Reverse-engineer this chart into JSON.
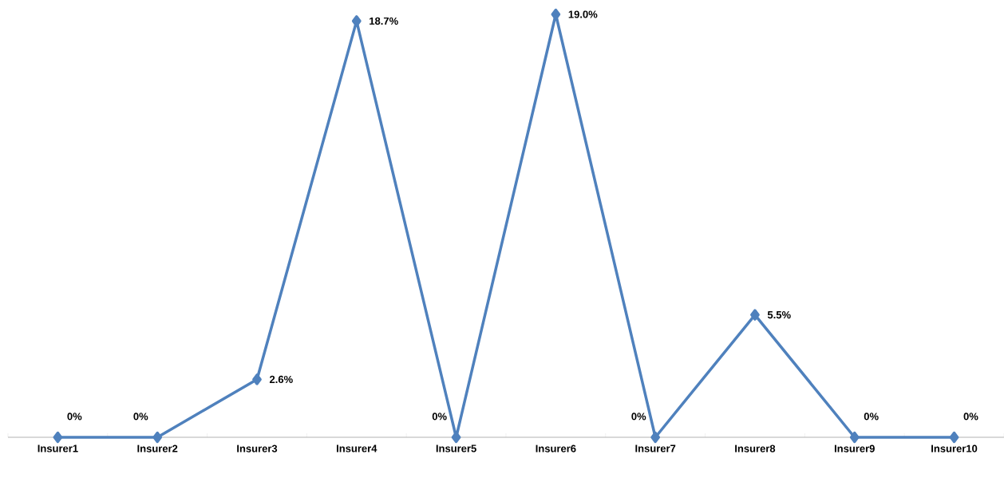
{
  "chart_data": {
    "type": "line",
    "categories": [
      "Insurer1",
      "Insurer2",
      "Insurer3",
      "Insurer4",
      "Insurer5",
      "Insurer6",
      "Insurer7",
      "Insurer8",
      "Insurer9",
      "Insurer10"
    ],
    "values": [
      0,
      0,
      2.6,
      18.7,
      0,
      19.0,
      0,
      5.5,
      0,
      0
    ],
    "value_labels": [
      "0%",
      "0%",
      "2.6%",
      "18.7%",
      "0%",
      "19.0%",
      "0%",
      "5.5%",
      "0%",
      "0%"
    ],
    "color": "#4f81bd",
    "marker": "diamond",
    "line_style": "solid"
  }
}
